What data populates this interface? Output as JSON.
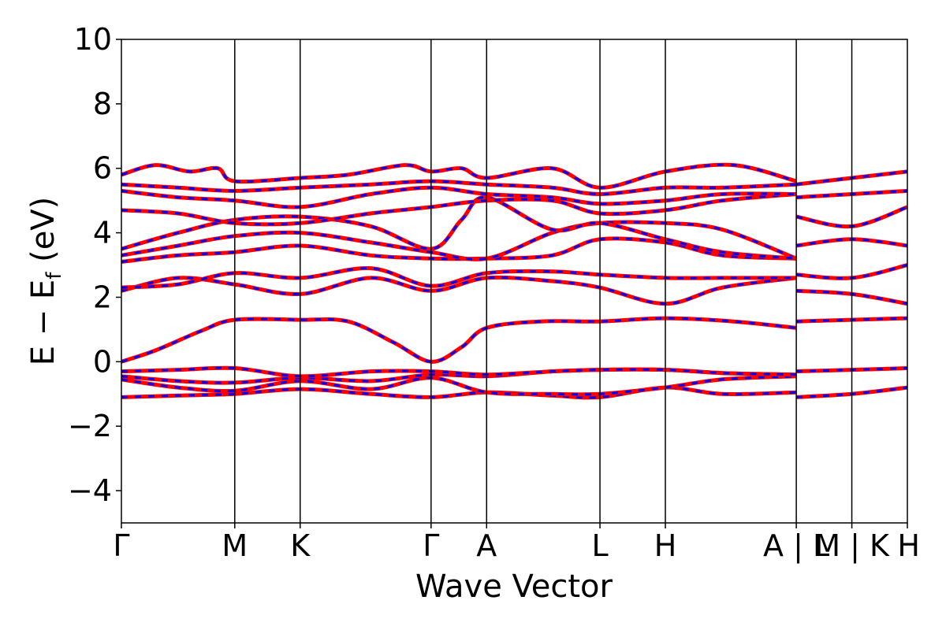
{
  "chart_data": {
    "type": "line",
    "title": "",
    "xlabel": "Wave Vector",
    "ylabel_main": "E − E",
    "ylabel_sub": "f",
    "ylabel_tail": " (eV)",
    "ylim": [
      -5,
      10
    ],
    "yticks": [
      -4,
      -2,
      0,
      2,
      4,
      6,
      8,
      10
    ],
    "ytick_labels": [
      "−4",
      "−2",
      "0",
      "2",
      "4",
      "6",
      "8",
      "10"
    ],
    "kpath_ticks": [
      {
        "k": 0.0,
        "label": "Γ"
      },
      {
        "k": 1.0,
        "label": "M"
      },
      {
        "k": 1.577,
        "label": "K"
      },
      {
        "k": 2.732,
        "label": "Γ"
      },
      {
        "k": 3.222,
        "label": "A"
      },
      {
        "k": 4.222,
        "label": "L"
      },
      {
        "k": 4.799,
        "label": "H"
      },
      {
        "k": 5.954,
        "label": "A | L"
      },
      {
        "k": 6.444,
        "label": "M | K"
      },
      {
        "k": 6.934,
        "label": "H"
      }
    ],
    "xlim": [
      0,
      6.934
    ],
    "grid": false,
    "series_style": [
      {
        "color": "#ff0000",
        "dash": "solid",
        "width": 5
      },
      {
        "color": "#0000ff",
        "dash": "dashed",
        "width": 3
      }
    ],
    "bands": [
      {
        "points": [
          [
            0,
            -1.1
          ],
          [
            0.5,
            -1.05
          ],
          [
            1.0,
            -1.0
          ],
          [
            1.577,
            -0.85
          ],
          [
            2.2,
            -1.0
          ],
          [
            2.732,
            -1.1
          ],
          [
            3.222,
            -0.95
          ],
          [
            3.8,
            -1.05
          ],
          [
            4.222,
            -1.1
          ],
          [
            4.799,
            -0.8
          ],
          [
            5.3,
            -1.0
          ],
          [
            5.954,
            -0.95
          ]
        ]
      },
      {
        "points": [
          [
            0,
            -0.55
          ],
          [
            0.5,
            -0.8
          ],
          [
            1.0,
            -0.9
          ],
          [
            1.577,
            -0.6
          ],
          [
            2.2,
            -0.85
          ],
          [
            2.732,
            -0.5
          ],
          [
            3.222,
            -0.95
          ],
          [
            3.8,
            -1.0
          ],
          [
            4.222,
            -1.0
          ],
          [
            4.799,
            -0.8
          ],
          [
            5.3,
            -0.55
          ],
          [
            5.954,
            -0.45
          ]
        ]
      },
      {
        "points": [
          [
            0,
            -0.45
          ],
          [
            0.5,
            -0.6
          ],
          [
            1.0,
            -0.65
          ],
          [
            1.577,
            -0.5
          ],
          [
            2.2,
            -0.6
          ],
          [
            2.732,
            -0.4
          ],
          [
            3.222,
            -0.45
          ],
          [
            3.8,
            -0.3
          ],
          [
            4.222,
            -0.25
          ],
          [
            4.799,
            -0.25
          ],
          [
            5.3,
            -0.35
          ],
          [
            5.954,
            -0.4
          ]
        ]
      },
      {
        "points": [
          [
            0,
            -0.3
          ],
          [
            0.5,
            -0.25
          ],
          [
            1.0,
            -0.2
          ],
          [
            1.577,
            -0.45
          ],
          [
            2.2,
            -0.3
          ],
          [
            2.732,
            -0.3
          ],
          [
            3.222,
            -0.4
          ],
          [
            3.8,
            -0.3
          ],
          [
            4.222,
            -0.25
          ],
          [
            4.799,
            -0.25
          ],
          [
            5.3,
            -0.35
          ],
          [
            5.954,
            -0.4
          ]
        ]
      },
      {
        "points": [
          [
            0,
            0.0
          ],
          [
            0.3,
            0.35
          ],
          [
            0.7,
            0.95
          ],
          [
            1.0,
            1.3
          ],
          [
            1.577,
            1.3
          ],
          [
            2.0,
            1.25
          ],
          [
            2.4,
            0.6
          ],
          [
            2.732,
            0.0
          ],
          [
            3.0,
            0.45
          ],
          [
            3.222,
            1.05
          ],
          [
            3.7,
            1.25
          ],
          [
            4.222,
            1.25
          ],
          [
            4.799,
            1.35
          ],
          [
            5.4,
            1.25
          ],
          [
            5.954,
            1.05
          ]
        ]
      },
      {
        "points": [
          [
            0,
            2.2
          ],
          [
            0.5,
            2.6
          ],
          [
            1.0,
            2.4
          ],
          [
            1.577,
            2.1
          ],
          [
            2.2,
            2.6
          ],
          [
            2.732,
            2.2
          ],
          [
            3.222,
            2.6
          ],
          [
            3.8,
            2.5
          ],
          [
            4.222,
            2.3
          ],
          [
            4.799,
            1.8
          ],
          [
            5.3,
            2.3
          ],
          [
            5.954,
            2.6
          ]
        ]
      },
      {
        "points": [
          [
            0,
            2.3
          ],
          [
            0.5,
            2.4
          ],
          [
            1.0,
            2.75
          ],
          [
            1.577,
            2.6
          ],
          [
            2.2,
            2.9
          ],
          [
            2.732,
            2.35
          ],
          [
            3.222,
            2.75
          ],
          [
            3.8,
            2.8
          ],
          [
            4.222,
            2.7
          ],
          [
            4.799,
            2.6
          ],
          [
            5.3,
            2.6
          ],
          [
            5.954,
            2.6
          ]
        ]
      },
      {
        "points": [
          [
            0,
            3.1
          ],
          [
            0.5,
            3.3
          ],
          [
            1.0,
            3.4
          ],
          [
            1.577,
            3.6
          ],
          [
            2.2,
            3.3
          ],
          [
            2.732,
            3.2
          ],
          [
            3.222,
            3.2
          ],
          [
            3.8,
            3.3
          ],
          [
            4.222,
            3.8
          ],
          [
            4.799,
            3.7
          ],
          [
            5.3,
            3.3
          ],
          [
            5.954,
            3.2
          ]
        ]
      },
      {
        "points": [
          [
            0,
            3.3
          ],
          [
            0.5,
            3.6
          ],
          [
            1.0,
            3.9
          ],
          [
            1.577,
            4.0
          ],
          [
            2.2,
            3.7
          ],
          [
            2.732,
            3.4
          ],
          [
            3.222,
            3.2
          ],
          [
            3.8,
            4.0
          ],
          [
            4.222,
            4.3
          ],
          [
            4.799,
            4.3
          ],
          [
            5.3,
            4.1
          ],
          [
            5.954,
            3.2
          ]
        ]
      },
      {
        "points": [
          [
            0,
            3.5
          ],
          [
            0.5,
            4.0
          ],
          [
            1.0,
            4.4
          ],
          [
            1.577,
            4.5
          ],
          [
            2.2,
            4.2
          ],
          [
            2.732,
            3.5
          ],
          [
            3.0,
            4.4
          ],
          [
            3.222,
            5.1
          ],
          [
            3.8,
            4.1
          ],
          [
            4.222,
            4.3
          ],
          [
            4.799,
            3.8
          ],
          [
            5.3,
            3.4
          ],
          [
            5.954,
            3.2
          ]
        ]
      },
      {
        "points": [
          [
            0,
            4.7
          ],
          [
            0.5,
            4.6
          ],
          [
            1.0,
            4.3
          ],
          [
            1.577,
            4.3
          ],
          [
            2.2,
            4.6
          ],
          [
            2.732,
            4.8
          ],
          [
            3.222,
            5.0
          ],
          [
            3.8,
            5.0
          ],
          [
            4.222,
            4.6
          ],
          [
            4.799,
            4.7
          ],
          [
            5.3,
            5.0
          ],
          [
            5.954,
            5.2
          ]
        ]
      },
      {
        "points": [
          [
            0,
            5.3
          ],
          [
            0.5,
            5.1
          ],
          [
            1.0,
            5.0
          ],
          [
            1.577,
            4.8
          ],
          [
            2.2,
            5.2
          ],
          [
            2.732,
            5.4
          ],
          [
            3.222,
            5.2
          ],
          [
            3.8,
            5.1
          ],
          [
            4.222,
            4.9
          ],
          [
            4.799,
            5.0
          ],
          [
            5.3,
            5.2
          ],
          [
            5.954,
            5.2
          ]
        ]
      },
      {
        "points": [
          [
            0,
            5.5
          ],
          [
            0.5,
            5.4
          ],
          [
            1.0,
            5.3
          ],
          [
            1.577,
            5.4
          ],
          [
            2.2,
            5.5
          ],
          [
            2.732,
            5.6
          ],
          [
            3.222,
            5.5
          ],
          [
            3.8,
            5.4
          ],
          [
            4.222,
            5.2
          ],
          [
            4.799,
            5.4
          ],
          [
            5.3,
            5.4
          ],
          [
            5.954,
            5.5
          ]
        ]
      },
      {
        "points": [
          [
            0,
            5.8
          ],
          [
            0.3,
            6.1
          ],
          [
            0.6,
            5.9
          ],
          [
            0.85,
            6.0
          ],
          [
            1.0,
            5.6
          ],
          [
            1.577,
            5.7
          ],
          [
            2.0,
            5.8
          ],
          [
            2.5,
            6.1
          ],
          [
            2.732,
            5.9
          ],
          [
            3.0,
            6.0
          ],
          [
            3.222,
            5.7
          ],
          [
            3.8,
            6.0
          ],
          [
            4.222,
            5.4
          ],
          [
            4.799,
            5.9
          ],
          [
            5.4,
            6.1
          ],
          [
            5.954,
            5.6
          ]
        ]
      },
      {
        "points": [
          [
            5.954,
            -1.1
          ],
          [
            6.444,
            -1.0
          ],
          [
            6.934,
            -0.8
          ]
        ]
      },
      {
        "points": [
          [
            5.954,
            -0.3
          ],
          [
            6.444,
            -0.25
          ],
          [
            6.934,
            -0.2
          ]
        ]
      },
      {
        "points": [
          [
            5.954,
            1.25
          ],
          [
            6.444,
            1.3
          ],
          [
            6.934,
            1.35
          ]
        ]
      },
      {
        "points": [
          [
            5.954,
            2.2
          ],
          [
            6.444,
            2.1
          ],
          [
            6.934,
            1.8
          ]
        ]
      },
      {
        "points": [
          [
            5.954,
            2.7
          ],
          [
            6.444,
            2.6
          ],
          [
            6.934,
            3.0
          ]
        ]
      },
      {
        "points": [
          [
            5.954,
            3.6
          ],
          [
            6.444,
            3.8
          ],
          [
            6.934,
            3.6
          ]
        ]
      },
      {
        "points": [
          [
            5.954,
            4.5
          ],
          [
            6.444,
            4.2
          ],
          [
            6.934,
            4.8
          ]
        ]
      },
      {
        "points": [
          [
            5.954,
            5.1
          ],
          [
            6.444,
            5.2
          ],
          [
            6.934,
            5.3
          ]
        ]
      },
      {
        "points": [
          [
            5.954,
            5.5
          ],
          [
            6.444,
            5.7
          ],
          [
            6.934,
            5.9
          ]
        ]
      }
    ]
  }
}
